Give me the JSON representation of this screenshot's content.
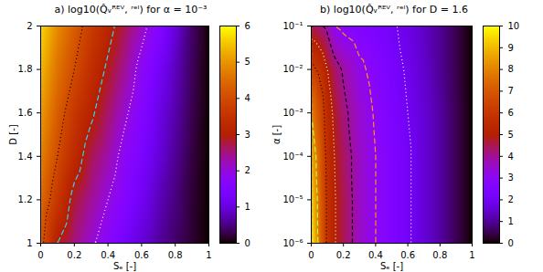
{
  "chart_data": [
    {
      "type": "heatmap",
      "title": "a) log10(Q̂ᵥᴿᴱⱽ, ʳᵉˡ) for α = 10⁻³",
      "x_label": "Sₑ [-]",
      "y_label": "D [-]",
      "x": [
        0,
        0.1,
        0.2,
        0.3,
        0.4,
        0.5,
        0.6,
        0.7,
        0.8,
        0.9,
        1
      ],
      "y": [
        1,
        1.2,
        1.4,
        1.6,
        1.8,
        2
      ],
      "cells": [
        [
          4.2,
          3.0,
          2.5,
          2.1,
          1.7,
          1.3,
          0.95,
          0.65,
          0.4,
          0.18,
          0
        ],
        [
          4.5,
          3.6,
          2.8,
          2.4,
          2.0,
          1.6,
          1.2,
          0.8,
          0.5,
          0.2,
          0
        ],
        [
          4.8,
          4.0,
          3.3,
          2.7,
          2.3,
          1.8,
          1.4,
          1.0,
          0.6,
          0.25,
          0
        ],
        [
          5.1,
          4.3,
          3.6,
          3.1,
          2.6,
          2.1,
          1.6,
          1.1,
          0.7,
          0.3,
          0
        ],
        [
          5.4,
          4.6,
          4.0,
          3.4,
          2.9,
          2.4,
          1.8,
          1.3,
          0.8,
          0.35,
          0
        ],
        [
          5.7,
          4.9,
          4.3,
          3.7,
          3.2,
          2.7,
          2.2,
          1.6,
          1.0,
          0.4,
          0
        ]
      ],
      "xlim": [
        0,
        1
      ],
      "ylim": [
        1,
        2
      ],
      "xticks": [
        0,
        0.2,
        0.4,
        0.6,
        0.8,
        1
      ],
      "yticks": [
        1,
        1.2,
        1.4,
        1.6,
        1.8,
        2
      ],
      "colorbar_range": [
        0,
        6
      ],
      "colorbar_ticks": [
        0,
        1,
        2,
        3,
        4,
        5,
        6
      ],
      "contour_levels": [
        4,
        3,
        2
      ]
    },
    {
      "type": "heatmap",
      "title": "b) log10(Q̂ᵥᴿᴱⱽ, ʳᵉˡ) for D = 1.6",
      "x_label": "Sₑ [-]",
      "y_label": "α [-]",
      "log": "y",
      "x": [
        0,
        0.05,
        0.1,
        0.15,
        0.2,
        0.3,
        0.4,
        0.5,
        0.6,
        0.7,
        0.8,
        0.9,
        1
      ],
      "y": [
        1e-06,
        1e-05,
        0.0001,
        0.001,
        0.01,
        0.1
      ],
      "cells": [
        [
          10,
          7.6,
          5.8,
          5.0,
          4.5,
          3.6,
          3.0,
          2.5,
          2.1,
          1.6,
          1.1,
          0.55,
          0
        ],
        [
          9.6,
          7.5,
          5.8,
          5.0,
          4.5,
          3.6,
          3.0,
          2.5,
          2.1,
          1.6,
          1.1,
          0.55,
          0
        ],
        [
          9.0,
          7.3,
          5.7,
          4.9,
          4.4,
          3.6,
          3.0,
          2.5,
          2.1,
          1.6,
          1.1,
          0.55,
          0
        ],
        [
          8.0,
          6.8,
          5.5,
          4.7,
          4.2,
          3.5,
          2.9,
          2.4,
          2.0,
          1.6,
          1.1,
          0.55,
          0
        ],
        [
          6.3,
          5.8,
          5.0,
          4.3,
          3.9,
          3.2,
          2.7,
          2.3,
          1.9,
          1.5,
          1.0,
          0.5,
          0
        ],
        [
          4.5,
          4.2,
          3.8,
          3.0,
          2.8,
          2.5,
          2.3,
          2.1,
          1.8,
          1.4,
          1.0,
          0.5,
          0
        ]
      ],
      "xlim": [
        0,
        1
      ],
      "ylim": [
        1e-06,
        0.1
      ],
      "xticks": [
        0,
        0.2,
        0.4,
        0.6,
        0.8,
        1
      ],
      "yticks": [
        {
          "value": 1e-06,
          "label": "10⁻⁶"
        },
        {
          "value": 1e-05,
          "label": "10⁻⁵"
        },
        {
          "value": 0.0001,
          "label": "10⁻⁴"
        },
        {
          "value": 0.001,
          "label": "10⁻³"
        },
        {
          "value": 0.01,
          "label": "10⁻²"
        },
        {
          "value": 0.1,
          "label": "10⁻¹"
        }
      ],
      "colorbar_range": [
        0,
        10
      ],
      "colorbar_ticks": [
        0,
        1,
        2,
        3,
        4,
        5,
        6,
        7,
        8,
        9,
        10
      ],
      "contour_levels": [
        8,
        6,
        5,
        4,
        3,
        2
      ]
    }
  ]
}
